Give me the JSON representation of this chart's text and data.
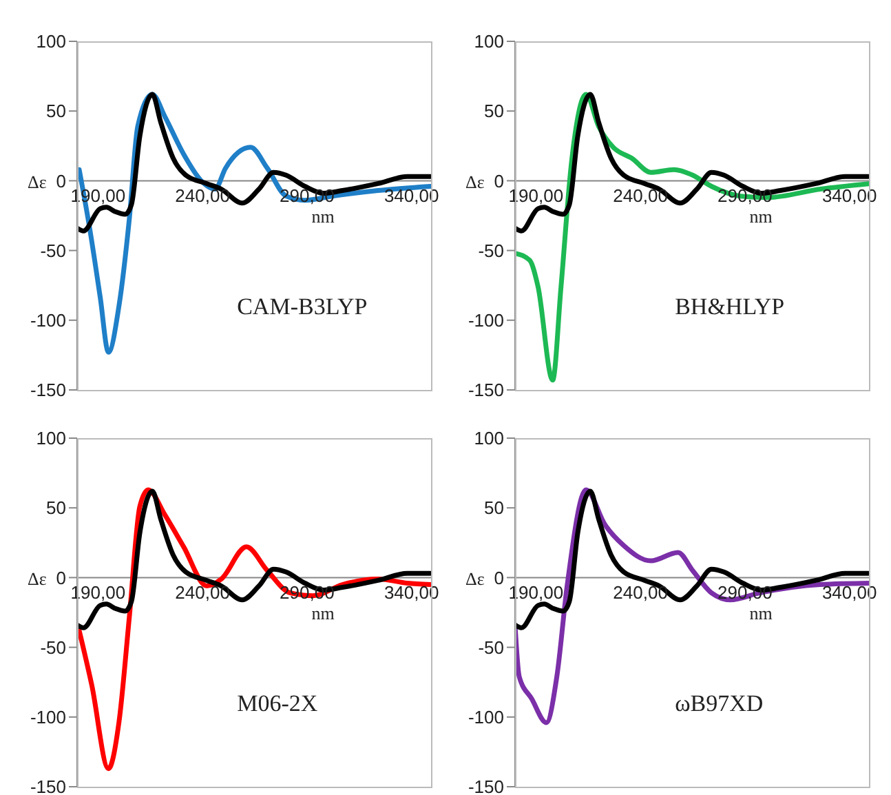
{
  "chart_data": [
    {
      "type": "line",
      "xlabel": "nm",
      "ylabel": "Δε",
      "xlim": [
        180,
        350
      ],
      "xticks": [
        {
          "value": 190,
          "label": "190,00"
        },
        {
          "value": 240,
          "label": "240,00"
        },
        {
          "value": 290,
          "label": "290,00"
        },
        {
          "value": 340,
          "label": "340,00"
        }
      ],
      "ylim": [
        -150,
        100
      ],
      "yticks": [
        -150,
        -100,
        -50,
        0,
        50,
        100
      ],
      "annotations": [
        "CAM-B3LYP"
      ],
      "series": [
        {
          "color": "#1f7fc8",
          "x": [
            181,
            186,
            191,
            195,
            200,
            205,
            209,
            216,
            222,
            231,
            240,
            246,
            251,
            263,
            271,
            280,
            289,
            302,
            324,
            349
          ],
          "values": [
            8,
            -34,
            -83,
            -123,
            -90,
            -27,
            39,
            62,
            46,
            19,
            -1,
            -6,
            9,
            24,
            9,
            -11,
            -14,
            -11,
            -7,
            -4
          ]
        },
        {
          "color": "#000000",
          "x": [
            180,
            183,
            191,
            194,
            198,
            203,
            206,
            210,
            216,
            220,
            226,
            232,
            242,
            249,
            259,
            267,
            274,
            280,
            289,
            298,
            307,
            324,
            338,
            349
          ],
          "values": [
            -34,
            -36,
            -20,
            -19,
            -22,
            -24,
            -17,
            32,
            62,
            42,
            16,
            4,
            -2,
            -6,
            -16,
            -6,
            6,
            4,
            -4,
            -9,
            -7,
            -2,
            3,
            3
          ]
        }
      ]
    },
    {
      "type": "line",
      "xlabel": "nm",
      "ylabel": "Δε",
      "xlim": [
        180,
        350
      ],
      "xticks": [
        {
          "value": 190,
          "label": "190,00"
        },
        {
          "value": 240,
          "label": "240,00"
        },
        {
          "value": 290,
          "label": "290,00"
        },
        {
          "value": 340,
          "label": "340,00"
        }
      ],
      "ylim": [
        -150,
        100
      ],
      "yticks": [
        -150,
        -100,
        -50,
        0,
        50,
        100
      ],
      "annotations": [
        "BH&HLYP"
      ],
      "series": [
        {
          "color": "#1db954",
          "x": [
            180,
            187,
            191,
            198,
            202,
            207,
            214,
            220,
            227,
            236,
            245,
            256,
            265,
            274,
            288,
            301,
            326,
            350
          ],
          "values": [
            -52,
            -57,
            -76,
            -143,
            -76,
            13,
            62,
            39,
            24,
            16,
            6,
            8,
            4,
            -4,
            -11,
            -12,
            -6,
            -2
          ]
        },
        {
          "color": "#000000",
          "x": [
            180,
            183,
            191,
            194,
            198,
            203,
            206,
            210,
            216,
            220,
            226,
            232,
            242,
            249,
            259,
            267,
            274,
            280,
            289,
            298,
            307,
            324,
            338,
            349
          ],
          "values": [
            -34,
            -36,
            -20,
            -19,
            -22,
            -24,
            -17,
            32,
            62,
            42,
            16,
            4,
            -2,
            -6,
            -16,
            -6,
            6,
            4,
            -4,
            -9,
            -7,
            -2,
            3,
            3
          ]
        }
      ]
    },
    {
      "type": "line",
      "xlabel": "nm",
      "ylabel": "Δε",
      "xlim": [
        180,
        350
      ],
      "xticks": [
        {
          "value": 190,
          "label": "190,00"
        },
        {
          "value": 240,
          "label": "240,00"
        },
        {
          "value": 290,
          "label": "290,00"
        },
        {
          "value": 340,
          "label": "340,00"
        }
      ],
      "ylim": [
        -150,
        100
      ],
      "yticks": [
        -150,
        -100,
        -50,
        0,
        50,
        100
      ],
      "annotations": [
        "M06-2X"
      ],
      "series": [
        {
          "color": "#ff0000",
          "x": [
            181,
            187,
            195,
            200,
            205,
            210,
            214,
            222,
            231,
            242,
            249,
            261,
            271,
            282,
            293,
            307,
            324,
            338,
            349
          ],
          "values": [
            -38,
            -77,
            -137,
            -104,
            -28,
            51,
            63,
            45,
            22,
            -6,
            -1,
            22,
            5,
            -11,
            -13,
            -5,
            -1,
            -4,
            -5
          ]
        },
        {
          "color": "#000000",
          "x": [
            180,
            183,
            191,
            194,
            198,
            203,
            206,
            210,
            216,
            220,
            226,
            232,
            242,
            249,
            259,
            267,
            274,
            280,
            289,
            298,
            307,
            324,
            338,
            349
          ],
          "values": [
            -34,
            -36,
            -20,
            -19,
            -22,
            -24,
            -17,
            32,
            62,
            42,
            16,
            4,
            -2,
            -6,
            -16,
            -6,
            6,
            4,
            -4,
            -9,
            -7,
            -2,
            3,
            3
          ]
        }
      ]
    },
    {
      "type": "line",
      "xlabel": "nm",
      "ylabel": "Δε",
      "xlim": [
        180,
        350
      ],
      "xticks": [
        {
          "value": 190,
          "label": "190,00"
        },
        {
          "value": 240,
          "label": "240,00"
        },
        {
          "value": 290,
          "label": "290,00"
        },
        {
          "value": 340,
          "label": "340,00"
        }
      ],
      "ylim": [
        -150,
        100
      ],
      "yticks": [
        -150,
        -100,
        -50,
        0,
        50,
        100
      ],
      "annotations": [
        "ωB97XD"
      ],
      "series": [
        {
          "color": "#7b2fa8",
          "x": [
            180,
            182,
            188,
            195,
            200,
            205,
            214,
            223,
            232,
            245,
            258,
            265,
            274,
            283,
            297,
            326,
            350
          ],
          "values": [
            -34,
            -71,
            -87,
            -104,
            -71,
            -5,
            63,
            38,
            23,
            12,
            18,
            5,
            -11,
            -16,
            -11,
            -5,
            -4
          ]
        },
        {
          "color": "#000000",
          "x": [
            180,
            183,
            191,
            194,
            198,
            203,
            206,
            210,
            216,
            220,
            226,
            232,
            242,
            249,
            259,
            267,
            274,
            280,
            289,
            298,
            307,
            324,
            338,
            349
          ],
          "values": [
            -34,
            -36,
            -20,
            -19,
            -22,
            -24,
            -17,
            32,
            62,
            42,
            16,
            4,
            -2,
            -6,
            -16,
            -6,
            6,
            4,
            -4,
            -9,
            -7,
            -2,
            3,
            3
          ]
        }
      ]
    }
  ]
}
